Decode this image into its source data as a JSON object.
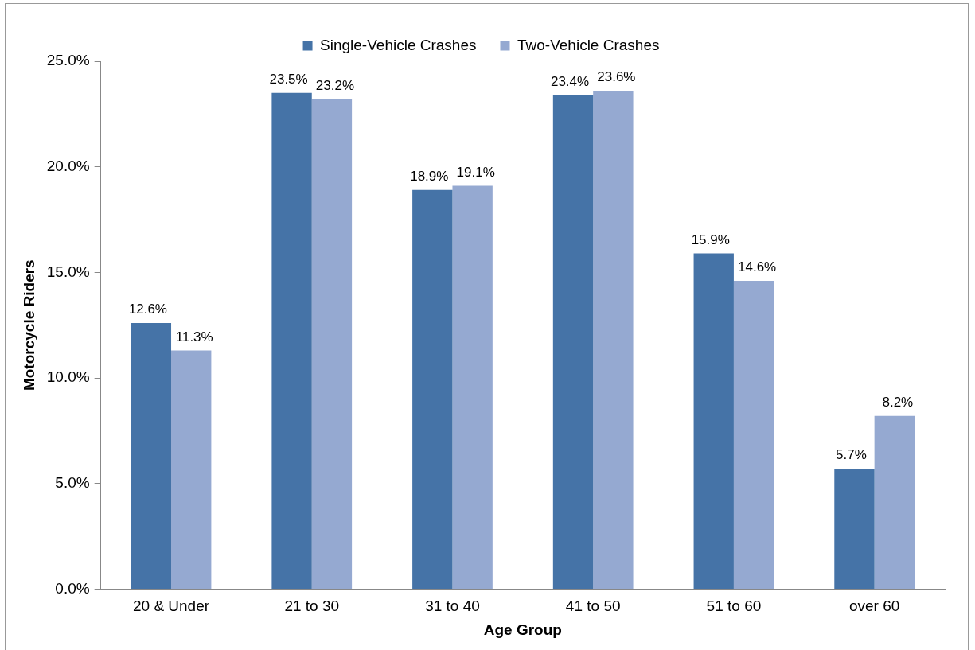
{
  "chart_data": {
    "type": "bar",
    "xlabel": "Age Group",
    "ylabel": "Motorcycle Riders",
    "categories": [
      "20 & Under",
      "21 to 30",
      "31 to 40",
      "41 to 50",
      "51 to 60",
      "over 60"
    ],
    "series": [
      {
        "name": "Single-Vehicle Crashes",
        "color": "#4573a7",
        "values": [
          12.6,
          23.5,
          18.9,
          23.4,
          15.9,
          5.7
        ],
        "value_labels": [
          "12.6%",
          "23.5%",
          "18.9%",
          "23.4%",
          "15.9%",
          "5.7%"
        ]
      },
      {
        "name": "Two-Vehicle Crashes",
        "color": "#95a9d1",
        "values": [
          11.3,
          23.2,
          19.1,
          23.6,
          14.6,
          8.2
        ],
        "value_labels": [
          "11.3%",
          "23.2%",
          "19.1%",
          "23.6%",
          "14.6%",
          "8.2%"
        ]
      }
    ],
    "ylim": [
      0,
      25
    ],
    "yticks": [
      {
        "value": 0,
        "label": "0.0%"
      },
      {
        "value": 5,
        "label": "5.0%"
      },
      {
        "value": 10,
        "label": "10.0%"
      },
      {
        "value": 15,
        "label": "15.0%"
      },
      {
        "value": 20,
        "label": "20.0%"
      },
      {
        "value": 25,
        "label": "25.0%"
      }
    ],
    "grid": false,
    "legend": "top"
  }
}
